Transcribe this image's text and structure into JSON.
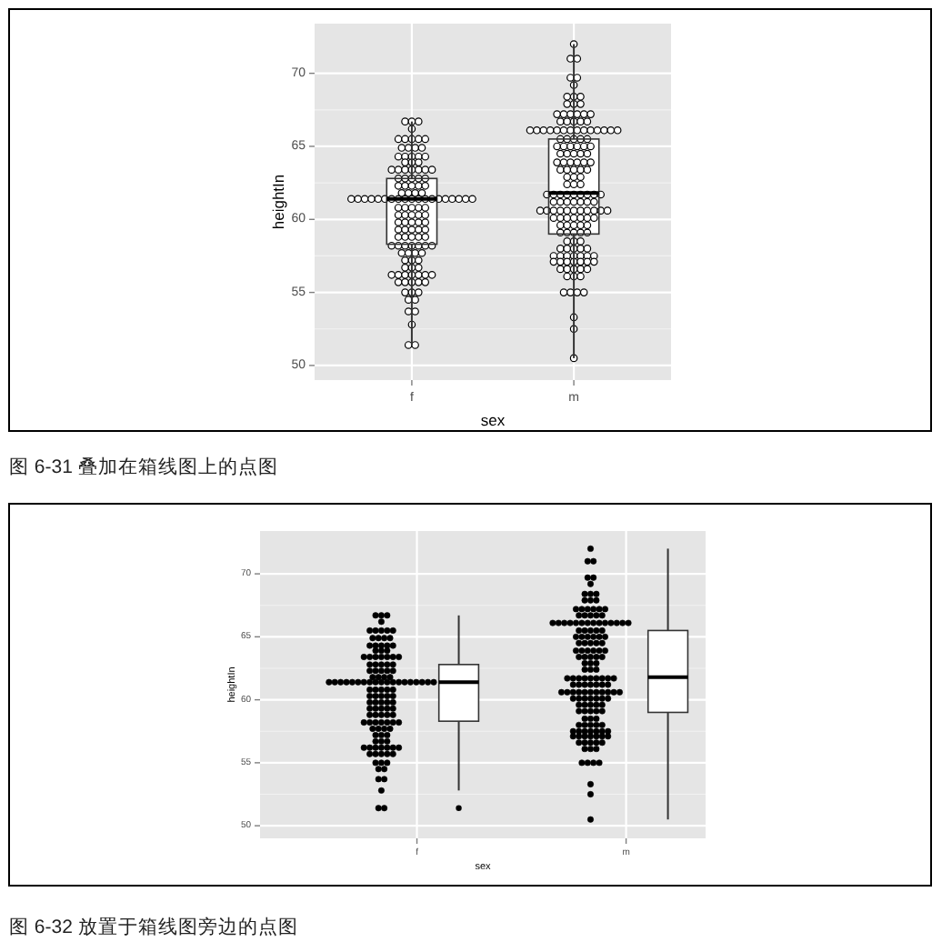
{
  "chart_data": [
    {
      "type": "box",
      "xlabel": "sex",
      "ylabel": "heightIn",
      "categories": [
        "f",
        "m"
      ],
      "ylim": [
        49,
        73.4
      ],
      "yticks": [
        50,
        55,
        60,
        65,
        70
      ],
      "grid": true,
      "annotations": [
        "图 6-31 叠加在箱线图上的点图"
      ],
      "boxes": [
        {
          "low": 51.4,
          "q1": 58.3,
          "median": 61.4,
          "q3": 62.8,
          "high": 66.7
        },
        {
          "low": 50.5,
          "q1": 59.0,
          "median": 61.8,
          "q3": 65.5,
          "high": 72.0
        }
      ],
      "series": [
        {
          "type": "scatter",
          "color": "#000000",
          "x": [
            "f",
            "f",
            "f",
            "f",
            "f",
            "f",
            "f",
            "f",
            "f",
            "f",
            "f",
            "f",
            "f",
            "f",
            "f",
            "f",
            "f",
            "f",
            "f",
            "f",
            "f",
            "f",
            "f",
            "f",
            "f",
            "f",
            "f",
            "f",
            "f",
            "f",
            "f",
            "f",
            "f",
            "f",
            "f",
            "f",
            "f",
            "f",
            "f",
            "f",
            "f",
            "f",
            "f",
            "f",
            "f",
            "f",
            "f",
            "f",
            "f",
            "f",
            "f",
            "f",
            "f",
            "f",
            "f",
            "f",
            "f",
            "f",
            "f",
            "f",
            "f",
            "f",
            "f",
            "f",
            "f",
            "f",
            "f",
            "f",
            "f",
            "f",
            "f",
            "f",
            "f",
            "f",
            "f",
            "f",
            "f",
            "f",
            "f",
            "f",
            "f",
            "f",
            "f",
            "f",
            "f",
            "f",
            "f",
            "f",
            "f",
            "f",
            "f",
            "f",
            "f",
            "f",
            "f",
            "f",
            "f",
            "f",
            "f",
            "f",
            "f",
            "f",
            "f",
            "f",
            "f",
            "f",
            "f",
            "f",
            "f",
            "f",
            "f",
            "f",
            "f",
            "f",
            "f",
            "f",
            "f",
            "f",
            "f",
            "f",
            "f",
            "f",
            "f",
            "f",
            "f"
          ],
          "values": [
            66.7,
            66.7,
            66.7,
            66.2,
            65.5,
            65.5,
            65.5,
            65.5,
            65.5,
            64.9,
            64.9,
            64.9,
            64.9,
            64.3,
            64.3,
            64.3,
            64.3,
            64.3,
            63.9,
            63.9,
            63.9,
            63.4,
            63.4,
            63.4,
            63.4,
            63.4,
            63.4,
            63.4,
            62.8,
            62.8,
            62.8,
            62.8,
            62.8,
            62.3,
            62.3,
            62.3,
            62.3,
            62.3,
            61.8,
            61.8,
            61.8,
            61.8,
            61.4,
            61.4,
            61.4,
            61.4,
            61.4,
            61.4,
            61.4,
            61.4,
            61.4,
            61.4,
            61.4,
            61.4,
            61.4,
            61.4,
            61.4,
            61.4,
            61.4,
            61.4,
            61.4,
            60.8,
            60.8,
            60.8,
            60.8,
            60.8,
            60.3,
            60.3,
            60.3,
            60.3,
            60.3,
            59.8,
            59.8,
            59.8,
            59.8,
            59.8,
            59.3,
            59.3,
            59.3,
            59.3,
            59.3,
            58.8,
            58.8,
            58.8,
            58.8,
            58.8,
            58.2,
            58.2,
            58.2,
            58.2,
            58.2,
            58.2,
            58.2,
            57.7,
            57.7,
            57.7,
            57.7,
            57.2,
            57.2,
            57.2,
            56.7,
            56.7,
            56.7,
            56.2,
            56.2,
            56.2,
            56.2,
            56.2,
            56.2,
            56.2,
            55.7,
            55.7,
            55.7,
            55.7,
            55.7,
            55.0,
            55.0,
            55.0,
            54.5,
            54.5,
            53.7,
            53.7,
            52.8,
            51.4,
            51.4
          ]
        },
        {
          "type": "scatter",
          "color": "#000000",
          "x": [
            "m",
            "m",
            "m",
            "m",
            "m",
            "m",
            "m",
            "m",
            "m",
            "m",
            "m",
            "m",
            "m",
            "m",
            "m",
            "m",
            "m",
            "m",
            "m",
            "m",
            "m",
            "m",
            "m",
            "m",
            "m",
            "m",
            "m",
            "m",
            "m",
            "m",
            "m",
            "m",
            "m",
            "m",
            "m",
            "m",
            "m",
            "m",
            "m",
            "m",
            "m",
            "m",
            "m",
            "m",
            "m",
            "m",
            "m",
            "m",
            "m",
            "m",
            "m",
            "m",
            "m",
            "m",
            "m",
            "m",
            "m",
            "m",
            "m",
            "m",
            "m",
            "m",
            "m",
            "m",
            "m",
            "m",
            "m",
            "m",
            "m",
            "m",
            "m",
            "m",
            "m",
            "m",
            "m",
            "m",
            "m",
            "m",
            "m",
            "m",
            "m",
            "m",
            "m",
            "m",
            "m",
            "m",
            "m",
            "m",
            "m",
            "m",
            "m",
            "m",
            "m",
            "m",
            "m",
            "m",
            "m",
            "m",
            "m",
            "m",
            "m",
            "m",
            "m",
            "m",
            "m",
            "m",
            "m",
            "m",
            "m",
            "m",
            "m",
            "m",
            "m",
            "m",
            "m",
            "m",
            "m",
            "m",
            "m",
            "m",
            "m",
            "m",
            "m",
            "m",
            "m",
            "m",
            "m",
            "m",
            "m",
            "m",
            "m",
            "m",
            "m",
            "m",
            "m",
            "m",
            "m",
            "m",
            "m",
            "m",
            "m",
            "m",
            "m",
            "m",
            "m",
            "m",
            "m",
            "m",
            "m",
            "m",
            "m"
          ],
          "values": [
            72.0,
            71.0,
            71.0,
            69.7,
            69.7,
            69.2,
            68.4,
            68.4,
            68.4,
            67.9,
            67.9,
            67.9,
            67.2,
            67.2,
            67.2,
            67.2,
            67.2,
            67.2,
            66.7,
            66.7,
            66.7,
            66.7,
            66.7,
            66.1,
            66.1,
            66.1,
            66.1,
            66.1,
            66.1,
            66.1,
            66.1,
            66.1,
            66.1,
            66.1,
            66.1,
            66.1,
            66.1,
            65.5,
            65.5,
            65.5,
            65.5,
            65.5,
            65.0,
            65.0,
            65.0,
            65.0,
            65.0,
            65.0,
            64.5,
            64.5,
            64.5,
            64.5,
            64.5,
            63.9,
            63.9,
            63.9,
            63.9,
            63.9,
            63.9,
            63.4,
            63.4,
            63.4,
            63.4,
            63.4,
            62.9,
            62.9,
            62.9,
            62.4,
            62.4,
            62.4,
            61.7,
            61.7,
            61.7,
            61.7,
            61.7,
            61.7,
            61.7,
            61.7,
            61.7,
            61.2,
            61.2,
            61.2,
            61.2,
            61.2,
            61.2,
            61.2,
            60.6,
            60.6,
            60.6,
            60.6,
            60.6,
            60.6,
            60.6,
            60.6,
            60.6,
            60.6,
            60.6,
            60.1,
            60.1,
            60.1,
            60.1,
            60.1,
            60.1,
            60.1,
            59.6,
            59.6,
            59.6,
            59.6,
            59.6,
            59.1,
            59.1,
            59.1,
            59.1,
            59.1,
            58.5,
            58.5,
            58.5,
            58.0,
            58.0,
            58.0,
            58.0,
            58.0,
            57.5,
            57.5,
            57.5,
            57.5,
            57.5,
            57.5,
            57.5,
            57.1,
            57.1,
            57.1,
            57.1,
            57.1,
            57.1,
            57.1,
            56.6,
            56.6,
            56.6,
            56.6,
            56.6,
            56.1,
            56.1,
            56.1,
            55.0,
            55.0,
            55.0,
            55.0,
            53.3,
            52.5,
            50.5
          ]
        }
      ]
    },
    {
      "type": "box",
      "xlabel": "sex",
      "ylabel": "heightIn",
      "categories": [
        "f",
        "m"
      ],
      "ylim": [
        49,
        73.4
      ],
      "yticks": [
        50,
        55,
        60,
        65,
        70
      ],
      "grid": true,
      "annotations": [
        "图 6-32 放置于箱线图旁边的点图"
      ],
      "boxes": [
        {
          "low": 52.8,
          "q1": 58.3,
          "median": 61.4,
          "q3": 62.8,
          "high": 66.7,
          "outliers": [
            51.4
          ]
        },
        {
          "low": 50.5,
          "q1": 59.0,
          "median": 61.8,
          "q3": 65.5,
          "high": 72.0
        }
      ],
      "series": [
        {
          "type": "scatter",
          "color": "#000000",
          "x": [
            "f",
            "f",
            "f",
            "f",
            "f",
            "f",
            "f",
            "f",
            "f",
            "f",
            "f",
            "f",
            "f",
            "f",
            "f",
            "f",
            "f",
            "f",
            "f",
            "f",
            "f",
            "f",
            "f",
            "f",
            "f",
            "f",
            "f",
            "f",
            "f",
            "f",
            "f",
            "f",
            "f",
            "f",
            "f",
            "f",
            "f",
            "f",
            "f",
            "f",
            "f",
            "f",
            "f",
            "f",
            "f",
            "f",
            "f",
            "f",
            "f",
            "f",
            "f",
            "f",
            "f",
            "f",
            "f",
            "f",
            "f",
            "f",
            "f",
            "f",
            "f",
            "f",
            "f",
            "f",
            "f",
            "f",
            "f",
            "f",
            "f",
            "f",
            "f",
            "f",
            "f",
            "f",
            "f",
            "f",
            "f",
            "f",
            "f",
            "f",
            "f",
            "f",
            "f",
            "f",
            "f",
            "f",
            "f",
            "f",
            "f",
            "f",
            "f",
            "f",
            "f",
            "f",
            "f",
            "f",
            "f",
            "f",
            "f",
            "f",
            "f",
            "f",
            "f",
            "f",
            "f",
            "f",
            "f",
            "f",
            "f",
            "f",
            "f",
            "f",
            "f",
            "f",
            "f",
            "f",
            "f",
            "f",
            "f",
            "f",
            "f",
            "f",
            "f",
            "f",
            "f"
          ],
          "values": [
            66.7,
            66.7,
            66.7,
            66.2,
            65.5,
            65.5,
            65.5,
            65.5,
            65.5,
            64.9,
            64.9,
            64.9,
            64.9,
            64.3,
            64.3,
            64.3,
            64.3,
            64.3,
            63.9,
            63.9,
            63.9,
            63.4,
            63.4,
            63.4,
            63.4,
            63.4,
            63.4,
            63.4,
            62.8,
            62.8,
            62.8,
            62.8,
            62.8,
            62.3,
            62.3,
            62.3,
            62.3,
            62.3,
            61.8,
            61.8,
            61.8,
            61.8,
            61.4,
            61.4,
            61.4,
            61.4,
            61.4,
            61.4,
            61.4,
            61.4,
            61.4,
            61.4,
            61.4,
            61.4,
            61.4,
            61.4,
            61.4,
            61.4,
            61.4,
            61.4,
            61.4,
            60.8,
            60.8,
            60.8,
            60.8,
            60.8,
            60.3,
            60.3,
            60.3,
            60.3,
            60.3,
            59.8,
            59.8,
            59.8,
            59.8,
            59.8,
            59.3,
            59.3,
            59.3,
            59.3,
            59.3,
            58.8,
            58.8,
            58.8,
            58.8,
            58.8,
            58.2,
            58.2,
            58.2,
            58.2,
            58.2,
            58.2,
            58.2,
            57.7,
            57.7,
            57.7,
            57.7,
            57.2,
            57.2,
            57.2,
            56.7,
            56.7,
            56.7,
            56.2,
            56.2,
            56.2,
            56.2,
            56.2,
            56.2,
            56.2,
            55.7,
            55.7,
            55.7,
            55.7,
            55.7,
            55.0,
            55.0,
            55.0,
            54.5,
            54.5,
            53.7,
            53.7,
            52.8,
            51.4,
            51.4
          ]
        },
        {
          "type": "scatter",
          "color": "#000000",
          "x": [
            "m",
            "m",
            "m",
            "m",
            "m",
            "m",
            "m",
            "m",
            "m",
            "m",
            "m",
            "m",
            "m",
            "m",
            "m",
            "m",
            "m",
            "m",
            "m",
            "m",
            "m",
            "m",
            "m",
            "m",
            "m",
            "m",
            "m",
            "m",
            "m",
            "m",
            "m",
            "m",
            "m",
            "m",
            "m",
            "m",
            "m",
            "m",
            "m",
            "m",
            "m",
            "m",
            "m",
            "m",
            "m",
            "m",
            "m",
            "m",
            "m",
            "m",
            "m",
            "m",
            "m",
            "m",
            "m",
            "m",
            "m",
            "m",
            "m",
            "m",
            "m",
            "m",
            "m",
            "m",
            "m",
            "m",
            "m",
            "m",
            "m",
            "m",
            "m",
            "m",
            "m",
            "m",
            "m",
            "m",
            "m",
            "m",
            "m",
            "m",
            "m",
            "m",
            "m",
            "m",
            "m",
            "m",
            "m",
            "m",
            "m",
            "m",
            "m",
            "m",
            "m",
            "m",
            "m",
            "m",
            "m",
            "m",
            "m",
            "m",
            "m",
            "m",
            "m",
            "m",
            "m",
            "m",
            "m",
            "m",
            "m",
            "m",
            "m",
            "m",
            "m",
            "m",
            "m",
            "m",
            "m",
            "m",
            "m",
            "m",
            "m",
            "m",
            "m",
            "m",
            "m",
            "m",
            "m",
            "m",
            "m",
            "m",
            "m",
            "m",
            "m",
            "m",
            "m",
            "m",
            "m",
            "m",
            "m",
            "m",
            "m",
            "m",
            "m",
            "m",
            "m",
            "m",
            "m",
            "m",
            "m",
            "m",
            "m"
          ],
          "values": [
            72.0,
            71.0,
            71.0,
            69.7,
            69.7,
            69.2,
            68.4,
            68.4,
            68.4,
            67.9,
            67.9,
            67.9,
            67.2,
            67.2,
            67.2,
            67.2,
            67.2,
            67.2,
            66.7,
            66.7,
            66.7,
            66.7,
            66.7,
            66.1,
            66.1,
            66.1,
            66.1,
            66.1,
            66.1,
            66.1,
            66.1,
            66.1,
            66.1,
            66.1,
            66.1,
            66.1,
            66.1,
            65.5,
            65.5,
            65.5,
            65.5,
            65.5,
            65.0,
            65.0,
            65.0,
            65.0,
            65.0,
            65.0,
            64.5,
            64.5,
            64.5,
            64.5,
            64.5,
            63.9,
            63.9,
            63.9,
            63.9,
            63.9,
            63.9,
            63.4,
            63.4,
            63.4,
            63.4,
            63.4,
            62.9,
            62.9,
            62.9,
            62.4,
            62.4,
            62.4,
            61.7,
            61.7,
            61.7,
            61.7,
            61.7,
            61.7,
            61.7,
            61.7,
            61.7,
            61.2,
            61.2,
            61.2,
            61.2,
            61.2,
            61.2,
            61.2,
            60.6,
            60.6,
            60.6,
            60.6,
            60.6,
            60.6,
            60.6,
            60.6,
            60.6,
            60.6,
            60.6,
            60.1,
            60.1,
            60.1,
            60.1,
            60.1,
            60.1,
            60.1,
            59.6,
            59.6,
            59.6,
            59.6,
            59.6,
            59.1,
            59.1,
            59.1,
            59.1,
            59.1,
            58.5,
            58.5,
            58.5,
            58.0,
            58.0,
            58.0,
            58.0,
            58.0,
            57.5,
            57.5,
            57.5,
            57.5,
            57.5,
            57.5,
            57.5,
            57.1,
            57.1,
            57.1,
            57.1,
            57.1,
            57.1,
            57.1,
            56.6,
            56.6,
            56.6,
            56.6,
            56.6,
            56.1,
            56.1,
            56.1,
            55.0,
            55.0,
            55.0,
            55.0,
            53.3,
            52.5,
            50.5
          ]
        }
      ]
    }
  ]
}
